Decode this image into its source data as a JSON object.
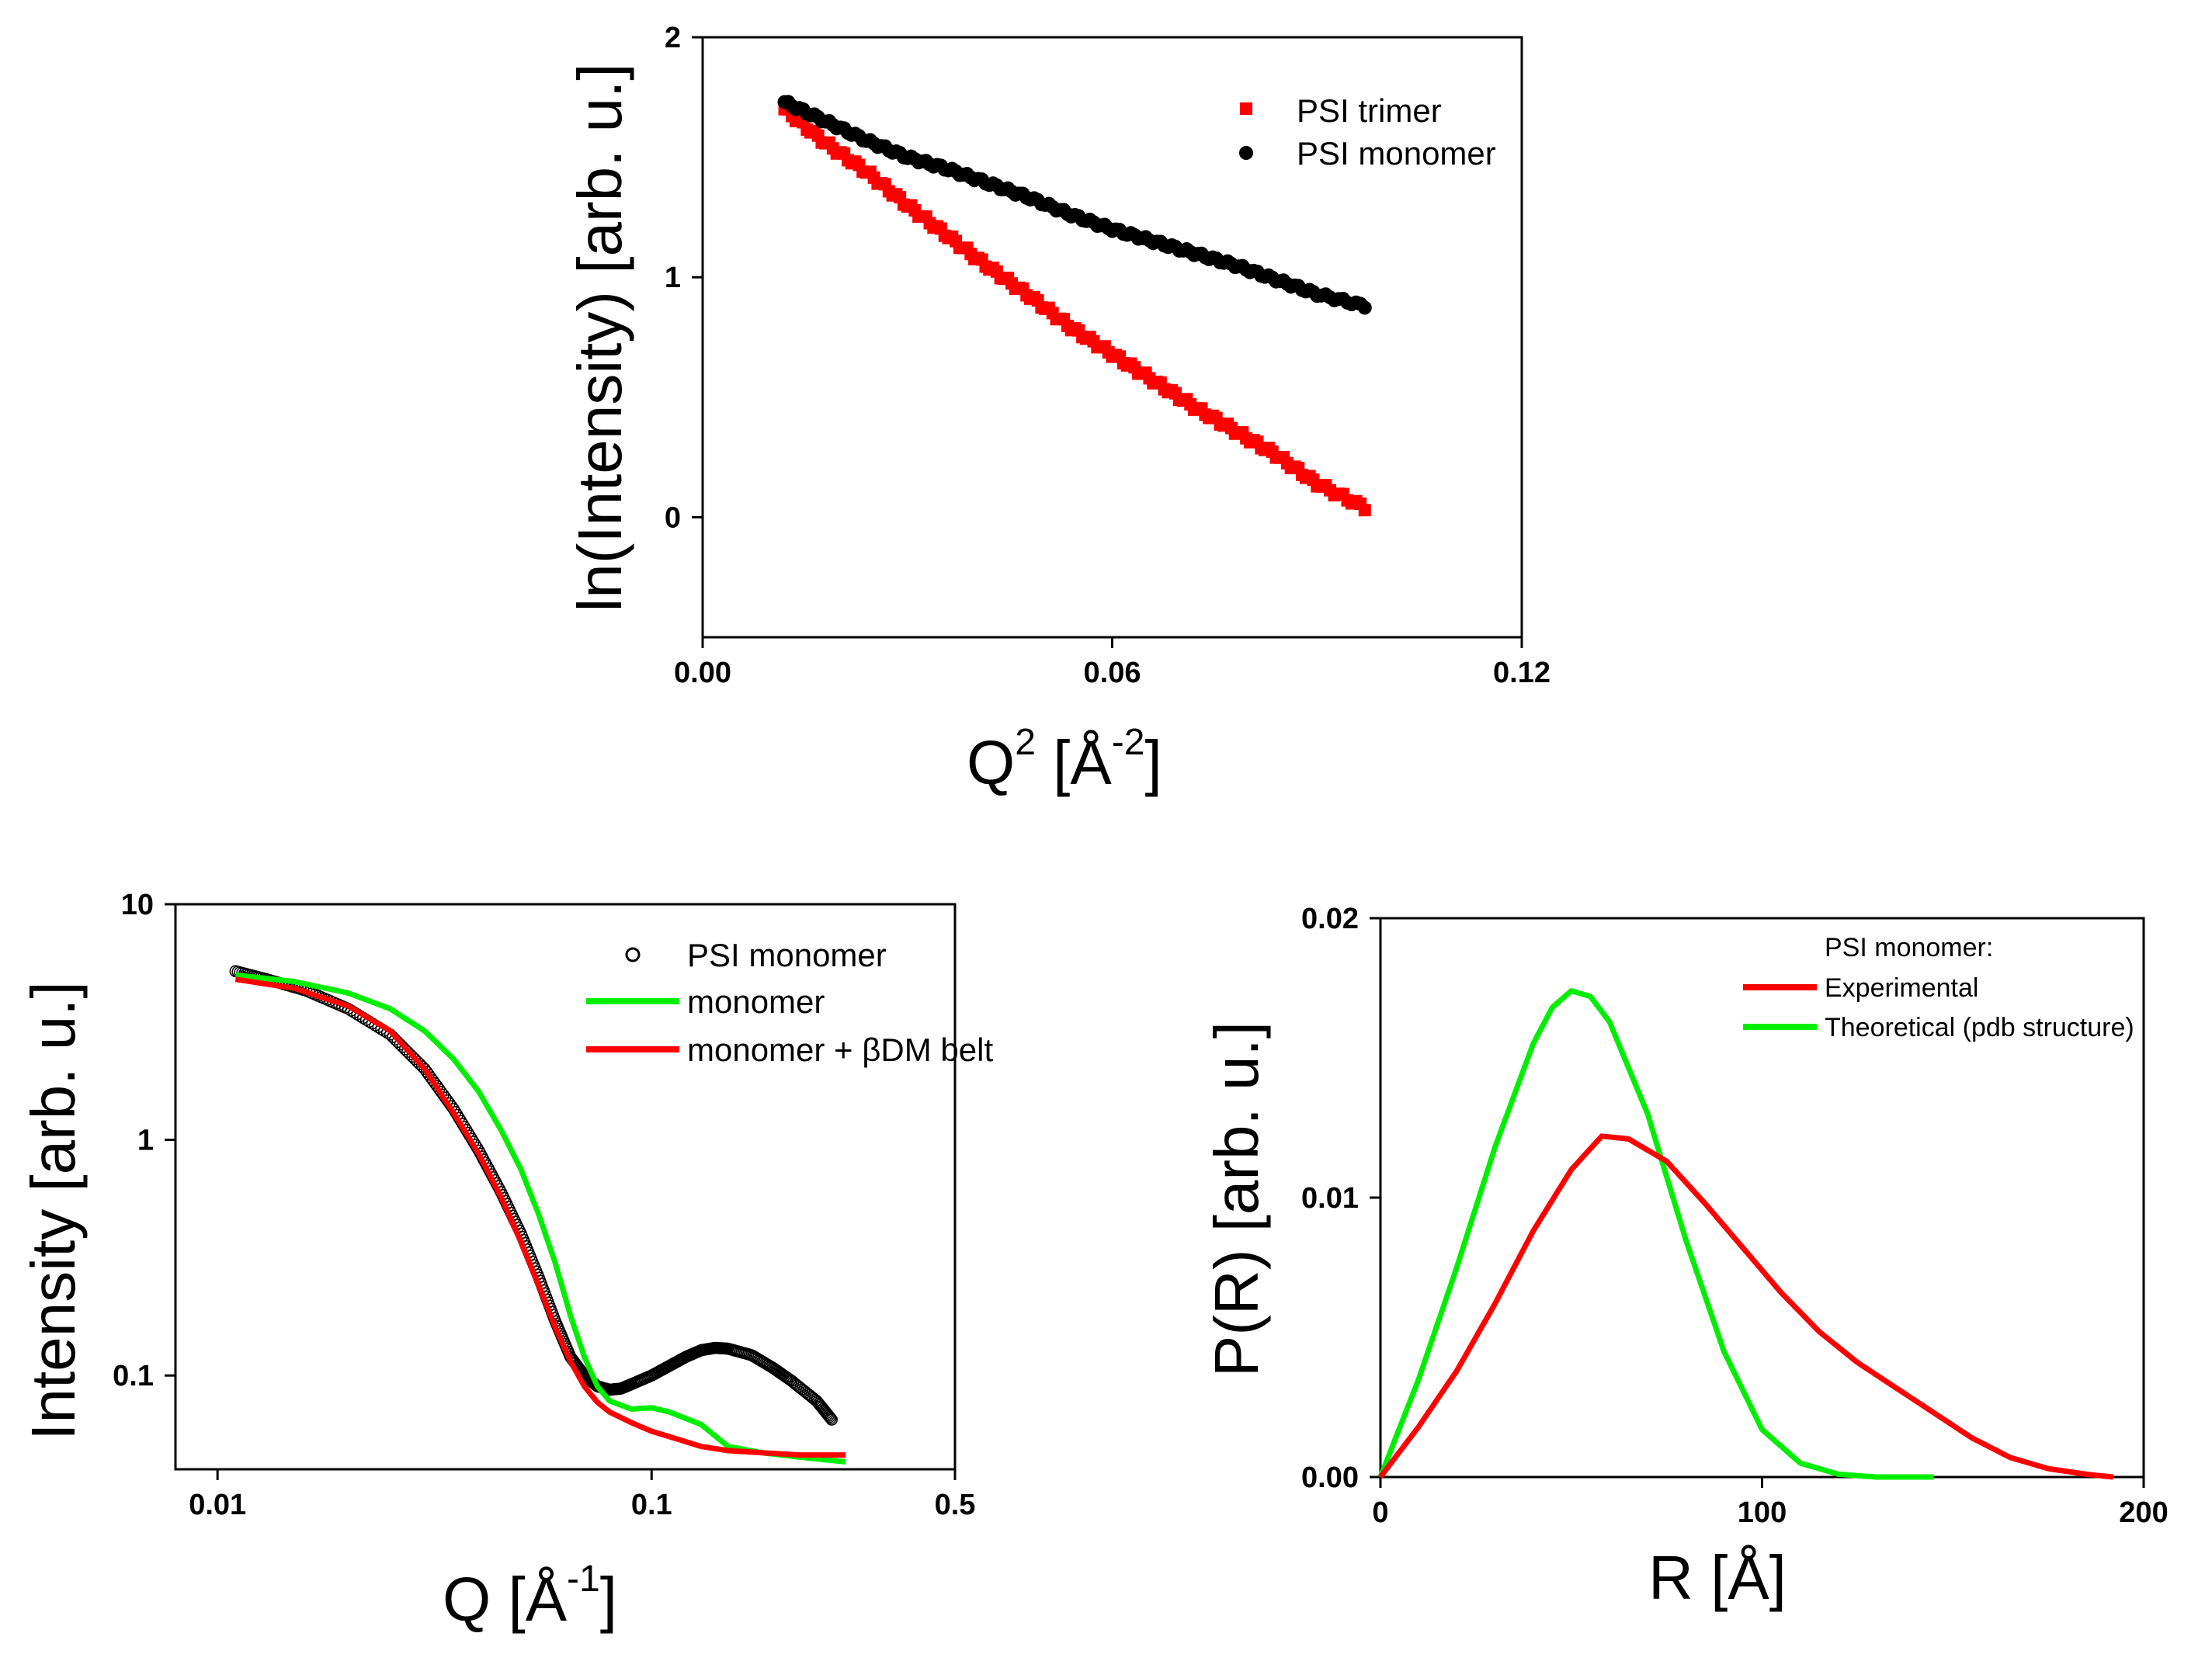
{
  "chart_data": [
    {
      "id": "guinier",
      "type": "scatter",
      "xlabel": "Q",
      "xlabel_sup": "2",
      "xlabel_unit_open": " [Å",
      "xlabel_unit_sup": "-2",
      "xlabel_unit_close": "]",
      "ylabel": "ln(Intensity) [arb. u.]",
      "xlim": [
        0,
        0.12
      ],
      "ylim": [
        -0.5,
        2
      ],
      "xticks": [
        0.0,
        0.06,
        0.12
      ],
      "xtick_labels": [
        "0.00",
        "0.06",
        "0.12"
      ],
      "yticks": [
        0,
        1,
        2
      ],
      "ytick_labels": [
        "0",
        "1",
        "2"
      ],
      "legend_position": "top-right",
      "series": [
        {
          "name": "PSI trimer",
          "marker": "square",
          "color": "#ff0000",
          "x": [
            0.012,
            0.018,
            0.024,
            0.03,
            0.036,
            0.042,
            0.048,
            0.054,
            0.06,
            0.066,
            0.072,
            0.078,
            0.084,
            0.09,
            0.097
          ],
          "y": [
            1.7,
            1.56,
            1.44,
            1.3,
            1.17,
            1.04,
            0.92,
            0.79,
            0.68,
            0.57,
            0.46,
            0.36,
            0.26,
            0.14,
            0.04
          ]
        },
        {
          "name": "PSI monomer",
          "marker": "circle",
          "color": "#000000",
          "x": [
            0.012,
            0.018,
            0.024,
            0.03,
            0.036,
            0.042,
            0.048,
            0.054,
            0.06,
            0.066,
            0.072,
            0.078,
            0.084,
            0.09,
            0.097
          ],
          "y": [
            1.73,
            1.65,
            1.57,
            1.5,
            1.45,
            1.39,
            1.33,
            1.26,
            1.2,
            1.15,
            1.1,
            1.05,
            0.99,
            0.93,
            0.88
          ]
        }
      ]
    },
    {
      "id": "scattering",
      "type": "line",
      "xscale": "log",
      "yscale": "log",
      "xlabel": "Q",
      "xlabel_unit_open": " [Å",
      "xlabel_unit_sup": "-1",
      "xlabel_unit_close": "]",
      "ylabel": "Intensity [arb. u.]",
      "xlim": [
        0.008,
        0.5
      ],
      "ylim": [
        0.04,
        10
      ],
      "xticks": [
        0.01,
        0.1,
        0.5
      ],
      "xtick_labels": [
        "0.01",
        "0.1",
        "0.5"
      ],
      "yticks": [
        0.1,
        1,
        10
      ],
      "ytick_labels": [
        "0.1",
        "1",
        "10"
      ],
      "legend_position": "top-right",
      "series": [
        {
          "name": "PSI monomer",
          "style": "open-circle",
          "color": "#000000",
          "x": [
            0.011,
            0.013,
            0.016,
            0.02,
            0.025,
            0.03,
            0.035,
            0.04,
            0.045,
            0.05,
            0.055,
            0.06,
            0.065,
            0.07,
            0.075,
            0.08,
            0.085,
            0.09,
            0.1,
            0.11,
            0.12,
            0.13,
            0.14,
            0.15,
            0.17,
            0.19,
            0.21,
            0.24,
            0.26
          ],
          "y": [
            5.2,
            4.8,
            4.3,
            3.6,
            2.8,
            2.0,
            1.35,
            0.9,
            0.6,
            0.4,
            0.26,
            0.17,
            0.12,
            0.1,
            0.09,
            0.087,
            0.088,
            0.092,
            0.1,
            0.11,
            0.12,
            0.128,
            0.131,
            0.13,
            0.122,
            0.108,
            0.095,
            0.078,
            0.065
          ]
        },
        {
          "name": "monomer",
          "style": "line",
          "color": "#00ee00",
          "x": [
            0.011,
            0.015,
            0.02,
            0.025,
            0.03,
            0.035,
            0.04,
            0.045,
            0.05,
            0.055,
            0.06,
            0.065,
            0.07,
            0.075,
            0.08,
            0.09,
            0.1,
            0.11,
            0.13,
            0.15,
            0.18,
            0.22,
            0.28
          ],
          "y": [
            5.0,
            4.7,
            4.2,
            3.6,
            2.9,
            2.2,
            1.6,
            1.1,
            0.75,
            0.48,
            0.3,
            0.18,
            0.12,
            0.09,
            0.078,
            0.072,
            0.073,
            0.07,
            0.062,
            0.05,
            0.047,
            0.045,
            0.043
          ]
        },
        {
          "name": "monomer + βDM belt",
          "style": "line",
          "color": "#ff0000",
          "x": [
            0.011,
            0.015,
            0.02,
            0.025,
            0.03,
            0.035,
            0.04,
            0.045,
            0.05,
            0.055,
            0.06,
            0.065,
            0.07,
            0.075,
            0.08,
            0.09,
            0.1,
            0.11,
            0.13,
            0.15,
            0.18,
            0.22,
            0.28
          ],
          "y": [
            4.8,
            4.4,
            3.7,
            2.9,
            2.0,
            1.3,
            0.87,
            0.57,
            0.37,
            0.24,
            0.16,
            0.115,
            0.09,
            0.077,
            0.07,
            0.063,
            0.058,
            0.055,
            0.05,
            0.048,
            0.047,
            0.046,
            0.046
          ]
        }
      ]
    },
    {
      "id": "pair-distance",
      "type": "line",
      "xlabel": "R [Å]",
      "ylabel": "P(R) [arb. u.]",
      "xlim": [
        0,
        200
      ],
      "ylim": [
        0,
        0.02
      ],
      "xticks": [
        0,
        100,
        200
      ],
      "xtick_labels": [
        "0",
        "100",
        "200"
      ],
      "yticks": [
        0,
        0.01,
        0.02
      ],
      "ytick_labels": [
        "0.00",
        "0.01",
        "0.02"
      ],
      "legend_title": "PSI monomer:",
      "legend_position": "top-right",
      "series": [
        {
          "name": "Experimental",
          "color": "#ff0000",
          "x": [
            0,
            10,
            20,
            30,
            40,
            50,
            58,
            65,
            75,
            85,
            95,
            105,
            115,
            125,
            135,
            145,
            155,
            165,
            175,
            185,
            192
          ],
          "y": [
            0,
            0.0018,
            0.0038,
            0.0062,
            0.0088,
            0.011,
            0.0122,
            0.0121,
            0.0113,
            0.0098,
            0.0082,
            0.0066,
            0.0052,
            0.0041,
            0.0032,
            0.0023,
            0.0014,
            0.0007,
            0.0003,
            0.0001,
            0
          ]
        },
        {
          "name": "Theoretical (pdb structure)",
          "color": "#00ee00",
          "x": [
            0,
            10,
            20,
            30,
            40,
            45,
            50,
            55,
            60,
            70,
            80,
            90,
            100,
            110,
            120,
            130,
            140,
            145
          ],
          "y": [
            0,
            0.0035,
            0.0075,
            0.0118,
            0.0155,
            0.0168,
            0.0174,
            0.0172,
            0.0163,
            0.013,
            0.0085,
            0.0045,
            0.0017,
            0.0005,
            0.0001,
            0,
            0,
            0
          ]
        }
      ]
    }
  ]
}
